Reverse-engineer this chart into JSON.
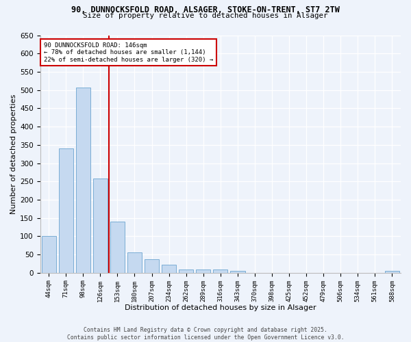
{
  "title_line1": "90, DUNNOCKSFOLD ROAD, ALSAGER, STOKE-ON-TRENT, ST7 2TW",
  "title_line2": "Size of property relative to detached houses in Alsager",
  "xlabel": "Distribution of detached houses by size in Alsager",
  "ylabel": "Number of detached properties",
  "bar_labels": [
    "44sqm",
    "71sqm",
    "98sqm",
    "126sqm",
    "153sqm",
    "180sqm",
    "207sqm",
    "234sqm",
    "262sqm",
    "289sqm",
    "316sqm",
    "343sqm",
    "370sqm",
    "398sqm",
    "425sqm",
    "452sqm",
    "479sqm",
    "506sqm",
    "534sqm",
    "561sqm",
    "588sqm"
  ],
  "bar_values": [
    100,
    340,
    507,
    258,
    140,
    55,
    38,
    23,
    9,
    10,
    10,
    5,
    0,
    0,
    0,
    0,
    0,
    0,
    0,
    0,
    5
  ],
  "bar_color": "#c5d9f0",
  "bar_edge_color": "#7aadd4",
  "vline_color": "#cc0000",
  "annotation_text": "90 DUNNOCKSFOLD ROAD: 146sqm\n← 78% of detached houses are smaller (1,144)\n22% of semi-detached houses are larger (320) →",
  "annotation_box_color": "#ffffff",
  "annotation_box_edge": "#cc0000",
  "ylim": [
    0,
    650
  ],
  "yticks": [
    0,
    50,
    100,
    150,
    200,
    250,
    300,
    350,
    400,
    450,
    500,
    550,
    600,
    650
  ],
  "bg_color": "#eef3fb",
  "grid_color": "#ffffff",
  "footer_line1": "Contains HM Land Registry data © Crown copyright and database right 2025.",
  "footer_line2": "Contains public sector information licensed under the Open Government Licence v3.0."
}
